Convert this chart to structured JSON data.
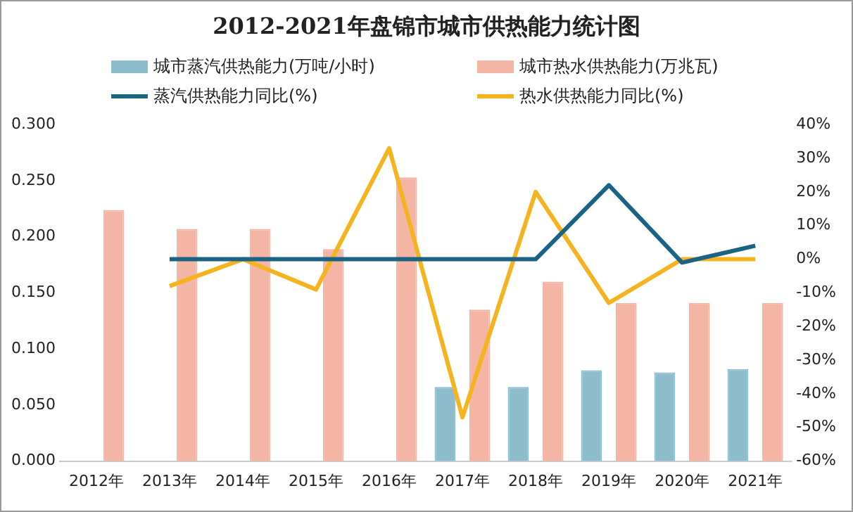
{
  "chart_data": {
    "type": "bar",
    "title": "2012-2021年盘锦市城市供热能力统计图",
    "categories": [
      "2012年",
      "2013年",
      "2014年",
      "2015年",
      "2016年",
      "2017年",
      "2018年",
      "2019年",
      "2020年",
      "2021年"
    ],
    "series": [
      {
        "name": "城市蒸汽供热能力(万吨/小时)",
        "color": "#8dbdcd",
        "values": [
          null,
          null,
          null,
          null,
          null,
          0.066,
          0.066,
          0.081,
          0.079,
          0.082
        ]
      },
      {
        "name": "城市热水供热能力(万兆瓦)",
        "color": "#f4b5a5",
        "values": [
          0.224,
          0.207,
          0.207,
          0.189,
          0.253,
          0.135,
          0.16,
          0.141,
          0.141,
          0.141
        ]
      },
      {
        "name": "蒸汽供热能力同比(%)",
        "type": "line",
        "axis": "y2",
        "color": "#1a6383",
        "values": [
          null,
          0,
          0,
          0,
          0,
          0,
          0,
          22,
          -1,
          4
        ]
      },
      {
        "name": "热水供热能力同比(%)",
        "type": "line",
        "axis": "y2",
        "color": "#f5b41f",
        "values": [
          null,
          -8,
          0,
          -9,
          33,
          -47,
          20,
          -13,
          0,
          0
        ]
      }
    ],
    "ylim": [
      0,
      0.3
    ],
    "yticks": [
      {
        "value": 0,
        "label": "0.000"
      },
      {
        "value": 0.05,
        "label": "0.050"
      },
      {
        "value": 0.1,
        "label": "0.100"
      },
      {
        "value": 0.15,
        "label": "0.150"
      },
      {
        "value": 0.2,
        "label": "0.200"
      },
      {
        "value": 0.25,
        "label": "0.250"
      },
      {
        "value": 0.3,
        "label": "0.300"
      }
    ],
    "y2lim": [
      -60,
      40
    ],
    "y2ticks": [
      {
        "value": -60,
        "label": "-60%"
      },
      {
        "value": -50,
        "label": "-50%"
      },
      {
        "value": -40,
        "label": "-40%"
      },
      {
        "value": -30,
        "label": "-30%"
      },
      {
        "value": -20,
        "label": "-20%"
      },
      {
        "value": -10,
        "label": "-10%"
      },
      {
        "value": 0,
        "label": "0%"
      },
      {
        "value": 10,
        "label": "10%"
      },
      {
        "value": 20,
        "label": "20%"
      },
      {
        "value": 30,
        "label": "30%"
      },
      {
        "value": 40,
        "label": "40%"
      }
    ],
    "grid": false,
    "legend": "top",
    "marker": "none",
    "line_style": "solid"
  }
}
